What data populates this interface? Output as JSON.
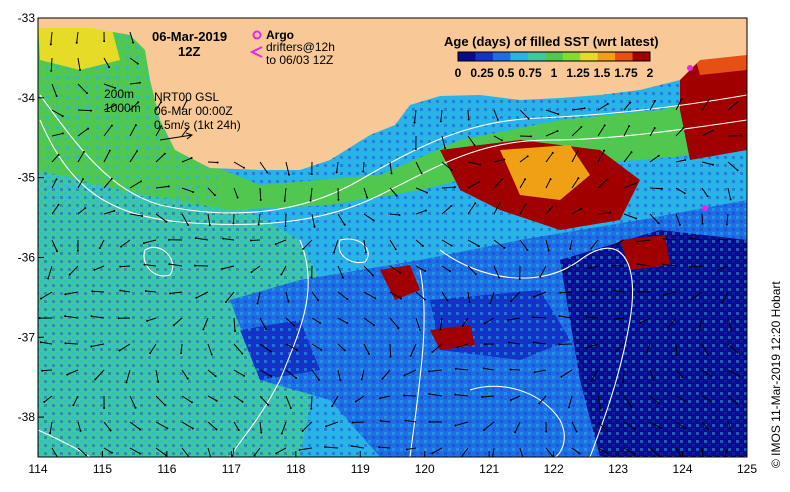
{
  "map": {
    "date_title": "06-Mar-2019",
    "time_title": "12Z",
    "legend_title": "Age (days) of filled SST (wrt latest)",
    "colorbar_ticks": [
      "0",
      "0.25",
      "0.5",
      "0.75",
      "1",
      "1.25",
      "1.5",
      "1.75",
      "2"
    ],
    "colorbar_colors": [
      "#0a0a8c",
      "#1432c8",
      "#1e6ee6",
      "#28b4e6",
      "#3cc8a0",
      "#50c850",
      "#82dc32",
      "#e6dc28",
      "#f0a014",
      "#e65014",
      "#a00000"
    ],
    "argo_label": "Argo",
    "drifters_label_1": "drifters@12h",
    "drifters_label_2": "to 06/03 12Z",
    "contour_label_1": "200m",
    "contour_label_2": "1000m",
    "product_line_1": "NRT00 GSL",
    "product_line_2": "06-Mar 00:00Z",
    "scale_label": "0.5m/s (1kt 24h)",
    "credit": "© IMOS 11-Mar-2019 12:20 Hobart",
    "x_ticks": [
      "114",
      "115",
      "116",
      "117",
      "118",
      "119",
      "120",
      "121",
      "122",
      "123",
      "124",
      "125"
    ],
    "y_ticks": [
      "-33",
      "-34",
      "-35",
      "-36",
      "-37",
      "-38"
    ],
    "land_color": "#f8c896",
    "argo_color": "#e628e6",
    "current_color": "#000000",
    "contour_color": "#ffffff",
    "lon_range": [
      114,
      125
    ],
    "lat_range": [
      -38.5,
      -33
    ]
  }
}
